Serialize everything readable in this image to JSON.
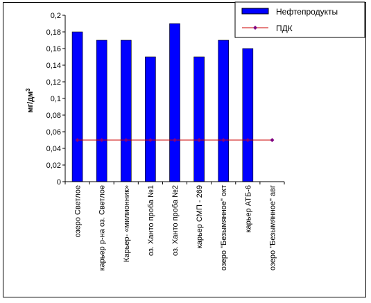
{
  "chart_data": {
    "type": "bar",
    "title": "",
    "xlabel": "",
    "ylabel": "мг/дм",
    "ylabel_sup": "3",
    "ylim": [
      0,
      0.2
    ],
    "yticks": [
      "0",
      "0,02",
      "0,04",
      "0,06",
      "0,08",
      "0,1",
      "0,12",
      "0,14",
      "0,16",
      "0,18",
      "0,2"
    ],
    "categories": [
      "озеро Светлое",
      "карьер  р-на оз. Светлое",
      "Карьер- «милионник»",
      "оз. Ханто проба №1",
      "оз. Ханто проба №2",
      "карьер СМП - 269",
      "озеро \"Безымянное\" окт",
      "карьер АТБ-6",
      "озеро \"Безымянное\" авг"
    ],
    "series": [
      {
        "name": "Нефтепродукты",
        "type": "bar",
        "color": "#0000ff",
        "values": [
          0.18,
          0.17,
          0.17,
          0.15,
          0.19,
          0.15,
          0.17,
          0.16,
          null
        ]
      },
      {
        "name": "ПДК",
        "type": "line",
        "color": "#cc0000",
        "marker_color": "#800080",
        "values": [
          0.05,
          0.05,
          0.05,
          0.05,
          0.05,
          0.05,
          0.05,
          0.05,
          0.05
        ]
      }
    ],
    "legend_position": "top-right",
    "grid": false
  }
}
